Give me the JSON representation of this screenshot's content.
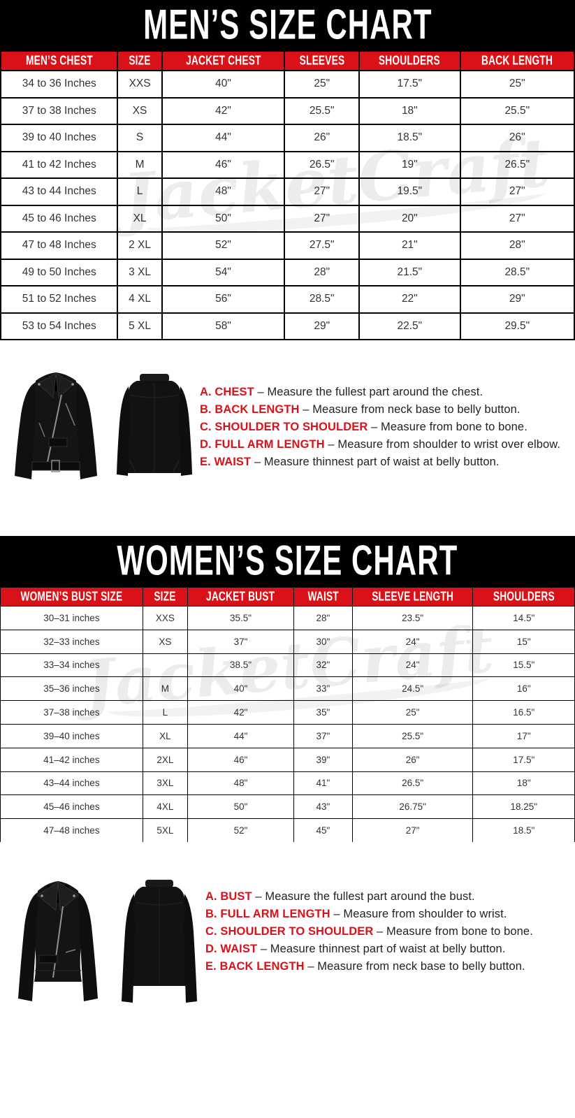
{
  "theme": {
    "red": "#DA1118",
    "black": "#000000",
    "watermark_text": "JacketCraft"
  },
  "mens": {
    "title": "MEN’S SIZE CHART",
    "columns": [
      "MEN’S CHEST",
      "SIZE",
      "JACKET CHEST",
      "SLEEVES",
      "SHOULDERS",
      "BACK LENGTH"
    ],
    "rows": [
      [
        "34 to 36 Inches",
        "XXS",
        "40\"",
        "25\"",
        "17.5\"",
        "25\""
      ],
      [
        "37 to 38 Inches",
        "XS",
        "42\"",
        "25.5\"",
        "18\"",
        "25.5\""
      ],
      [
        "39 to 40 Inches",
        "S",
        "44\"",
        "26\"",
        "18.5\"",
        "26\""
      ],
      [
        "41 to 42 Inches",
        "M",
        "46\"",
        "26.5\"",
        "19\"",
        "26.5\""
      ],
      [
        "43 to 44 Inches",
        "L",
        "48\"",
        "27\"",
        "19.5\"",
        "27\""
      ],
      [
        "45 to 46 Inches",
        "XL",
        "50\"",
        "27\"",
        "20\"",
        "27\""
      ],
      [
        "47 to 48 Inches",
        "2 XL",
        "52\"",
        "27.5\"",
        "21\"",
        "28\""
      ],
      [
        "49 to 50 Inches",
        "3 XL",
        "54\"",
        "28\"",
        "21.5\"",
        "28.5\""
      ],
      [
        "51 to 52 Inches",
        "4 XL",
        "56\"",
        "28.5\"",
        "22\"",
        "29\""
      ],
      [
        "53 to 54 Inches",
        "5 XL",
        "58\"",
        "29\"",
        "22.5\"",
        "29.5\""
      ]
    ],
    "guide": [
      {
        "label": "A. CHEST",
        "text": "– Measure the fullest part around the chest."
      },
      {
        "label": "B. BACK LENGTH",
        "text": "– Measure from neck base to belly button."
      },
      {
        "label": "C. SHOULDER TO SHOULDER",
        "text": "– Measure from bone to bone."
      },
      {
        "label": "D. FULL ARM LENGTH",
        "text": "– Measure from shoulder to wrist over elbow."
      },
      {
        "label": "E. WAIST",
        "text": "– Measure thinnest part of waist at belly button."
      }
    ]
  },
  "womens": {
    "title": "WOMEN’S SIZE CHART",
    "columns": [
      "WOMEN’S BUST SIZE",
      "SIZE",
      "JACKET BUST",
      "WAIST",
      "SLEEVE LENGTH",
      "SHOULDERS"
    ],
    "rows": [
      [
        "30–31 inches",
        "XXS",
        "35.5\"",
        "28\"",
        "23.5\"",
        "14.5\""
      ],
      [
        "32–33 inches",
        "XS",
        "37\"",
        "30\"",
        "24\"",
        "15\""
      ],
      [
        "33–34 inches",
        "",
        "38.5\"",
        "32\"",
        "24\"",
        "15.5\""
      ],
      [
        "35–36 inches",
        "M",
        "40\"",
        "33\"",
        "24.5\"",
        "16\""
      ],
      [
        "37–38 inches",
        "L",
        "42\"",
        "35\"",
        "25\"",
        "16.5\""
      ],
      [
        "39–40 inches",
        "XL",
        "44\"",
        "37\"",
        "25.5\"",
        "17\""
      ],
      [
        "41–42 inches",
        "2XL",
        "46\"",
        "39\"",
        "26\"",
        "17.5\""
      ],
      [
        "43–44 inches",
        "3XL",
        "48\"",
        "41\"",
        "26.5\"",
        "18\""
      ],
      [
        "45–46 inches",
        "4XL",
        "50\"",
        "43\"",
        "26.75\"",
        "18.25\""
      ],
      [
        "47–48 inches",
        "5XL",
        "52\"",
        "45\"",
        "27\"",
        "18.5\""
      ]
    ],
    "guide": [
      {
        "label": "A. BUST",
        "text": "– Measure the fullest part around the bust."
      },
      {
        "label": "B. FULL ARM LENGTH",
        "text": "– Measure from shoulder to wrist."
      },
      {
        "label": "C. SHOULDER TO SHOULDER",
        "text": "– Measure from bone to bone."
      },
      {
        "label": "D. WAIST",
        "text": "– Measure thinnest part of waist at belly button."
      },
      {
        "label": "E. BACK LENGTH",
        "text": "– Measure from neck base to belly button."
      }
    ]
  }
}
